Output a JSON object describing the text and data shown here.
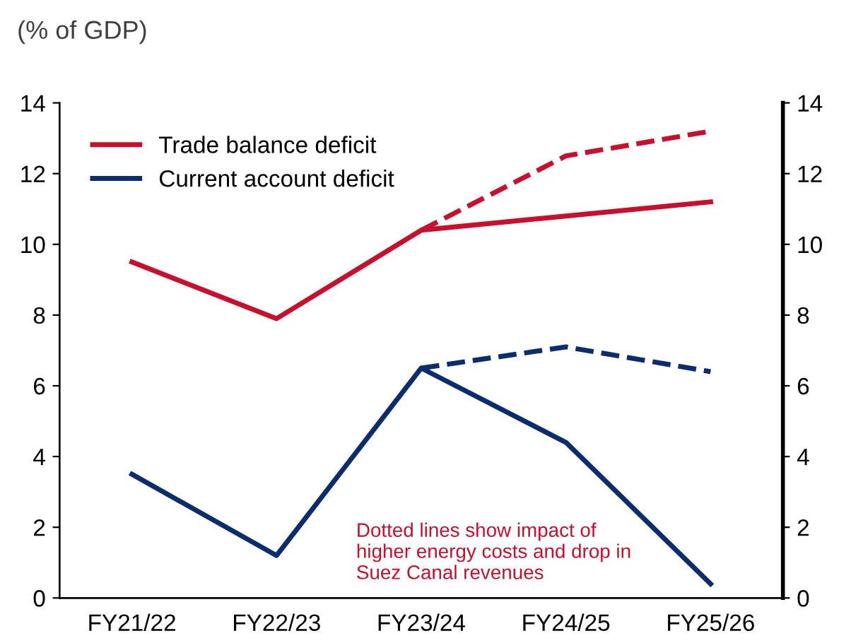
{
  "chart_data": {
    "type": "line",
    "subtitle": "(% of GDP)",
    "categories": [
      "FY21/22",
      "FY22/23",
      "FY23/24",
      "FY24/25",
      "FY25/26"
    ],
    "series": [
      {
        "name": "Trade balance deficit",
        "color": "#c8102e",
        "values": [
          9.5,
          7.9,
          10.4,
          10.8,
          11.2
        ],
        "line_style": "solid"
      },
      {
        "name": "Current account deficit",
        "color": "#0b2d6e",
        "values": [
          3.5,
          1.2,
          6.5,
          4.4,
          0.4
        ],
        "line_style": "solid"
      },
      {
        "color": "#c8102e",
        "values": [
          null,
          null,
          10.4,
          12.5,
          13.2
        ],
        "line_style": "dashed"
      },
      {
        "color": "#0b2d6e",
        "values": [
          null,
          null,
          6.5,
          7.1,
          6.4
        ],
        "line_style": "dashed"
      }
    ],
    "ylim": [
      0,
      14
    ],
    "yticks": [
      0,
      2,
      4,
      6,
      8,
      10,
      12,
      14
    ],
    "y2lim": [
      0,
      14
    ],
    "y2ticks": [
      0,
      2,
      4,
      6,
      8,
      10,
      12,
      14
    ],
    "annotations": [
      "Dotted lines show impact of\nhigher energy costs and drop in\nSuez Canal revenues"
    ],
    "legend": "top left",
    "grid": false,
    "marker": "none"
  }
}
